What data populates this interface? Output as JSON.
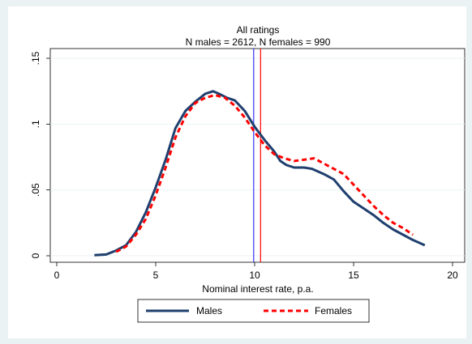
{
  "chart_data": {
    "type": "line",
    "title": "All ratings",
    "subtitle": "N males = 2612, N females = 990",
    "xlabel": "Nominal interest rate, p.a.",
    "ylabel": "",
    "xlim": [
      0,
      20
    ],
    "ylim": [
      0,
      0.15
    ],
    "x_ticks": [
      0,
      5,
      10,
      15,
      20
    ],
    "x_tick_labels": [
      "0",
      "5",
      "10",
      "15",
      "20"
    ],
    "y_ticks": [
      0,
      0.05,
      0.1,
      0.15
    ],
    "y_tick_labels": [
      "0",
      ".05",
      ".1",
      ".15"
    ],
    "grid": "horizontal",
    "legend_position": "bottom",
    "series": [
      {
        "name": "Males",
        "style": "solid",
        "color": "#1f3f6e",
        "x": [
          1.9,
          2.5,
          3.0,
          3.5,
          4.0,
          4.5,
          5.0,
          5.5,
          6.0,
          6.5,
          7.0,
          7.5,
          7.9,
          8.2,
          8.6,
          9.0,
          9.5,
          10.0,
          10.5,
          11.0,
          11.3,
          11.6,
          12.0,
          12.5,
          12.9,
          13.2,
          13.5,
          14.0,
          14.5,
          15.0,
          15.5,
          16.0,
          16.5,
          17.0,
          17.5,
          18.0,
          18.6
        ],
        "y": [
          0.0005,
          0.001,
          0.004,
          0.008,
          0.018,
          0.033,
          0.052,
          0.073,
          0.097,
          0.11,
          0.117,
          0.123,
          0.125,
          0.123,
          0.12,
          0.118,
          0.11,
          0.098,
          0.088,
          0.079,
          0.072,
          0.069,
          0.067,
          0.067,
          0.066,
          0.064,
          0.062,
          0.058,
          0.049,
          0.041,
          0.036,
          0.031,
          0.025,
          0.02,
          0.016,
          0.012,
          0.008
        ]
      },
      {
        "name": "Females",
        "style": "dashed",
        "color": "#ff0000",
        "x": [
          3.0,
          3.5,
          4.0,
          4.5,
          5.0,
          5.5,
          6.0,
          6.5,
          7.0,
          7.5,
          8.0,
          8.5,
          9.0,
          9.5,
          10.0,
          10.5,
          11.0,
          11.5,
          12.0,
          12.5,
          13.0,
          13.5,
          14.0,
          14.5,
          15.0,
          15.5,
          16.0,
          16.5,
          17.0,
          17.5,
          18.0
        ],
        "y": [
          0.003,
          0.007,
          0.016,
          0.028,
          0.046,
          0.067,
          0.09,
          0.106,
          0.116,
          0.12,
          0.122,
          0.12,
          0.114,
          0.105,
          0.094,
          0.084,
          0.077,
          0.074,
          0.072,
          0.073,
          0.074,
          0.07,
          0.066,
          0.062,
          0.054,
          0.046,
          0.038,
          0.031,
          0.025,
          0.021,
          0.016
        ]
      }
    ],
    "reference_lines": [
      {
        "x": 9.95,
        "color": "#3333ff"
      },
      {
        "x": 10.3,
        "color": "#ff0000"
      }
    ]
  }
}
